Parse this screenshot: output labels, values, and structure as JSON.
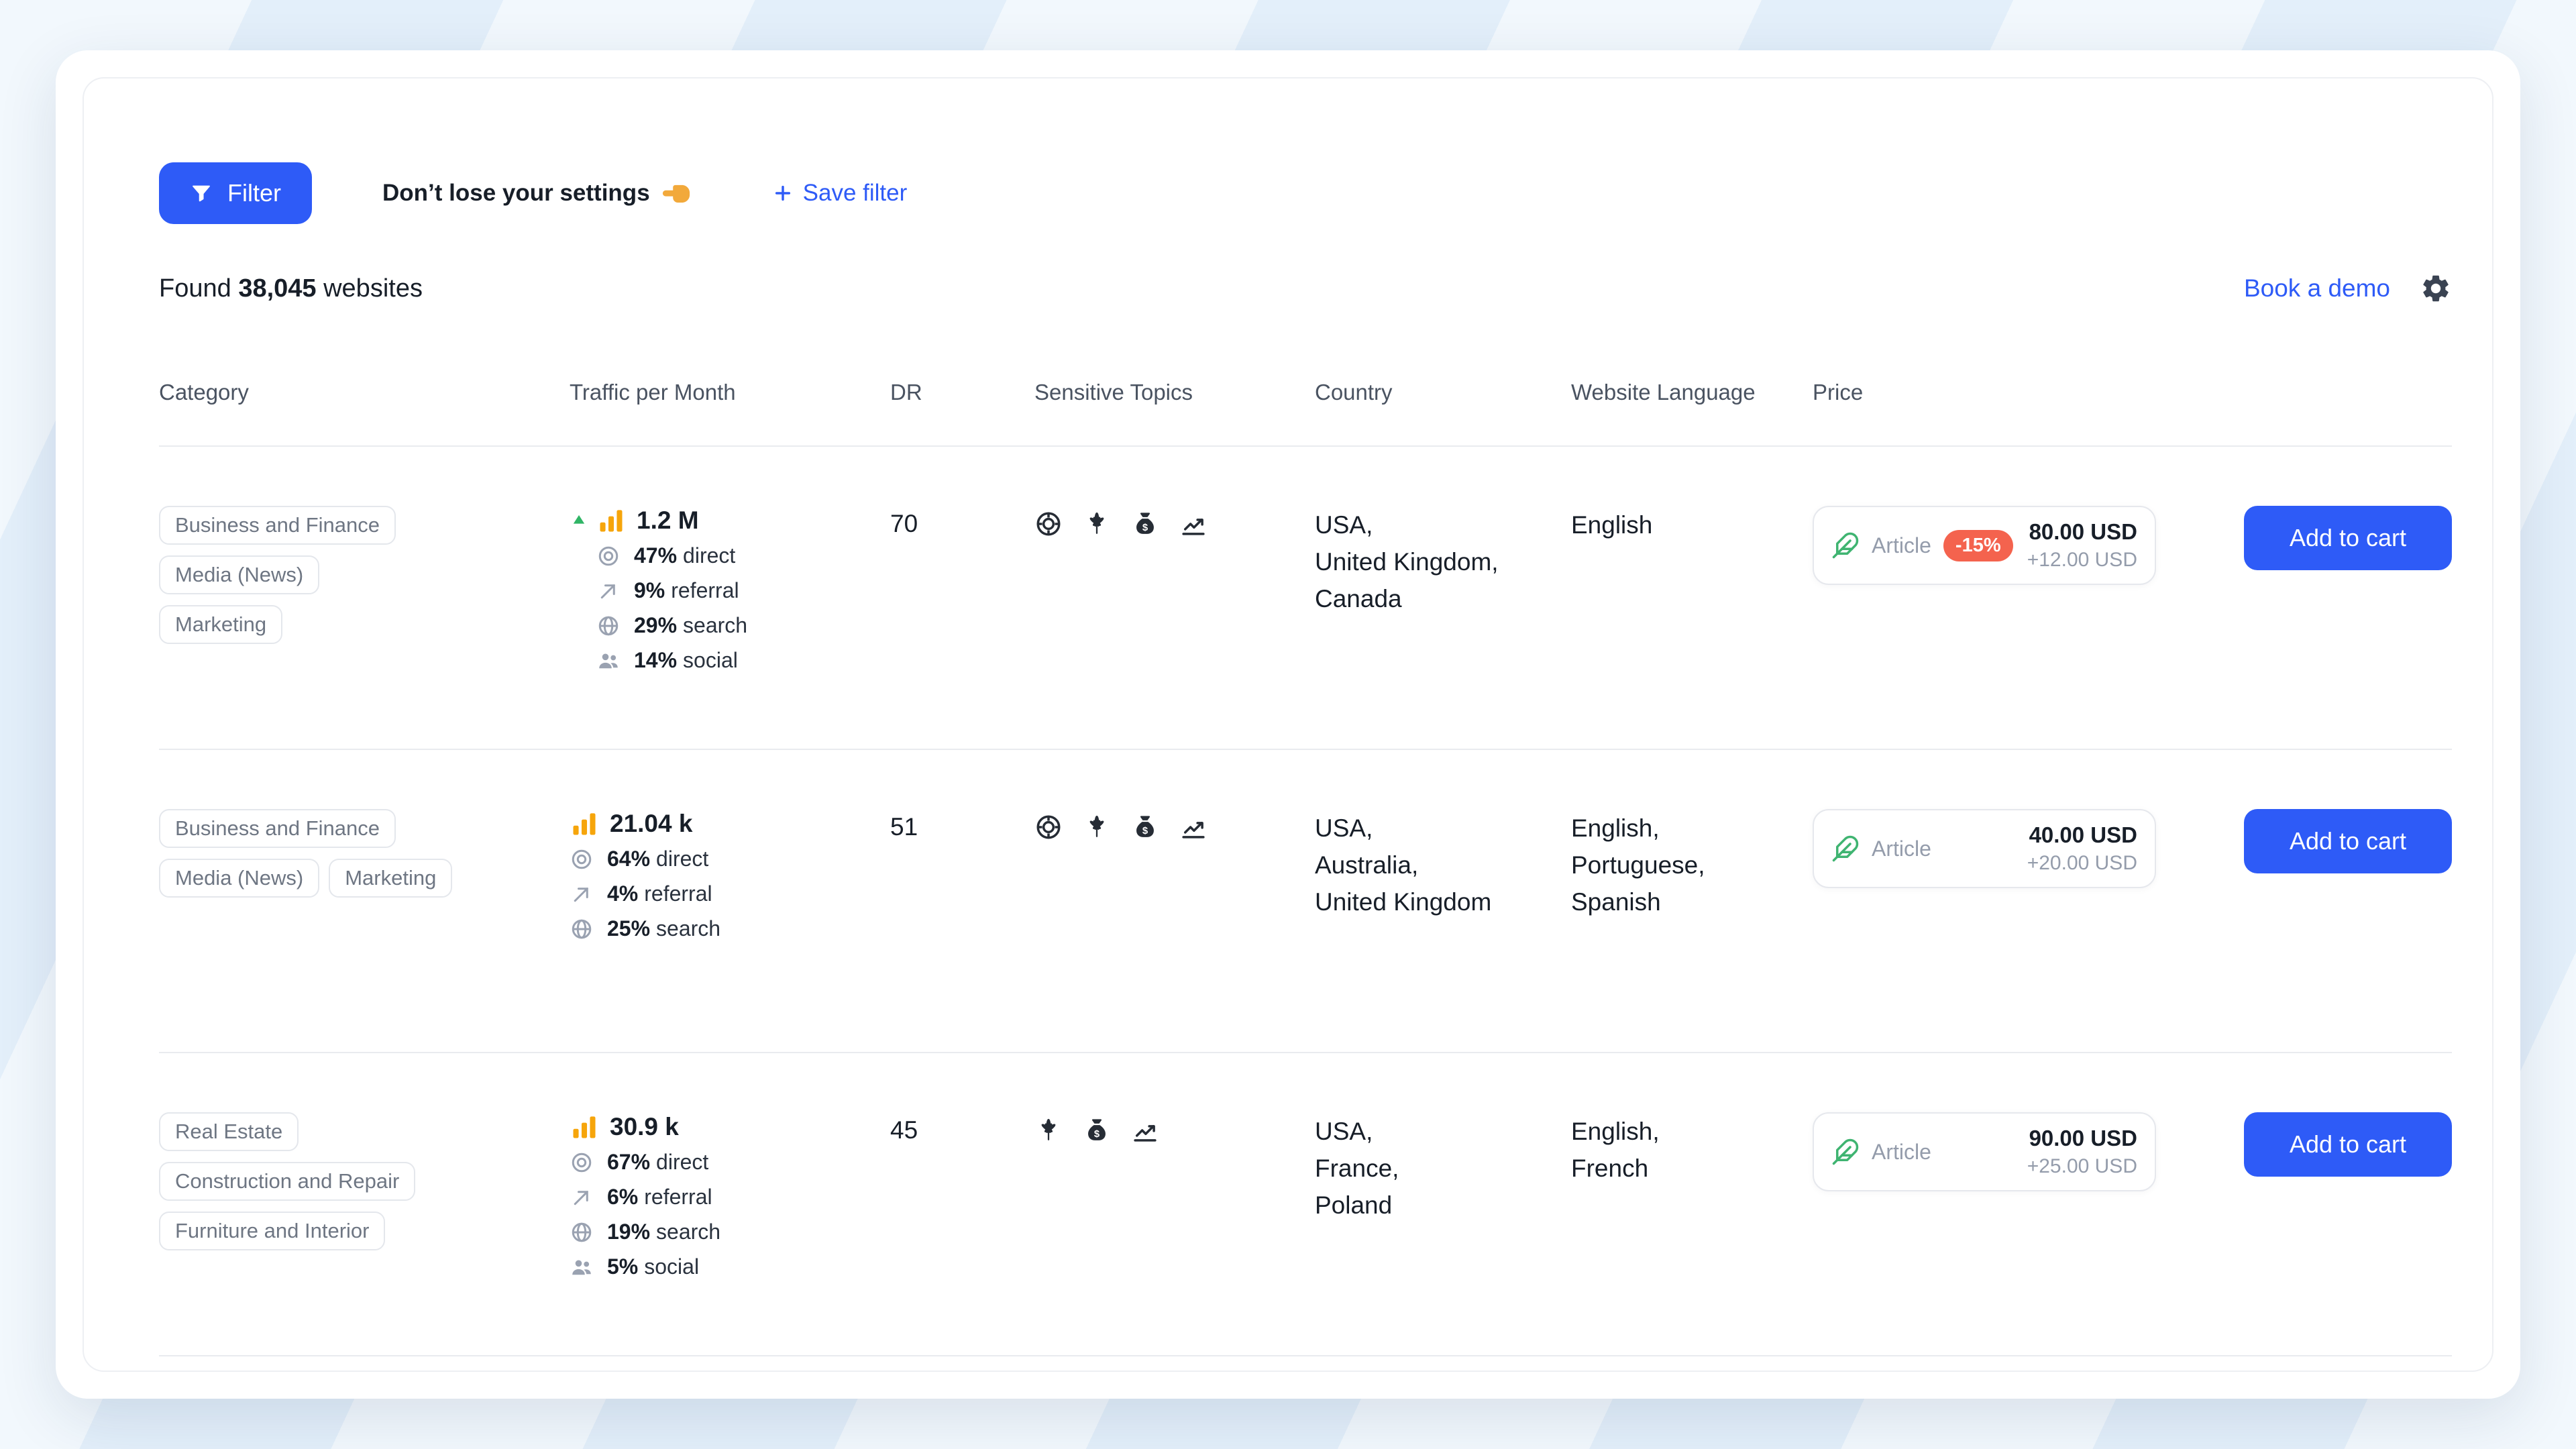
{
  "theme": {
    "accent": "#2e5bf7",
    "badge": "#f4634e",
    "bars_orange": "#f6a50b",
    "trend_green": "#30b566",
    "feather_green": "#3fb471",
    "background": "#e3effa"
  },
  "toolbar": {
    "filter_label": "Filter",
    "hint": "Don’t lose your settings",
    "save_filter_label": "Save filter"
  },
  "summary": {
    "found_prefix": "Found",
    "count": "38,045",
    "found_suffix": "websites",
    "book_demo_label": "Book a demo"
  },
  "table": {
    "headers": [
      "Category",
      "Traffic per Month",
      "DR",
      "Sensitive Topics",
      "Country",
      "Website Language",
      "Price"
    ],
    "rows": [
      {
        "categories": [
          [
            "Business and Finance"
          ],
          [
            "Media (News)"
          ],
          [
            "Marketing"
          ]
        ],
        "traffic": {
          "trend_up": true,
          "total": "1.2 M",
          "breakdown": [
            {
              "icon": "direct",
              "value": "47%",
              "label": "direct"
            },
            {
              "icon": "referral",
              "value": "9%",
              "label": "referral"
            },
            {
              "icon": "search",
              "value": "29%",
              "label": "search"
            },
            {
              "icon": "social",
              "value": "14%",
              "label": "social"
            }
          ]
        },
        "dr": "70",
        "sensitive_topics": [
          "casino-chip",
          "cannabis",
          "money-bag",
          "trading"
        ],
        "countries": [
          "USA,",
          "United Kingdom,",
          "Canada"
        ],
        "languages": [
          "English"
        ],
        "price": {
          "label": "Article",
          "discount": "-15%",
          "amount": "80.00 USD",
          "extra": "+12.00 USD"
        },
        "cart_label": "Add to cart"
      },
      {
        "categories": [
          [
            "Business and Finance"
          ],
          [
            "Media (News)",
            "Marketing"
          ]
        ],
        "traffic": {
          "trend_up": false,
          "total": "21.04 k",
          "breakdown": [
            {
              "icon": "direct",
              "value": "64%",
              "label": "direct"
            },
            {
              "icon": "referral",
              "value": "4%",
              "label": "referral"
            },
            {
              "icon": "search",
              "value": "25%",
              "label": "search"
            }
          ]
        },
        "dr": "51",
        "sensitive_topics": [
          "casino-chip",
          "cannabis",
          "money-bag",
          "trading"
        ],
        "countries": [
          "USA,",
          "Australia,",
          "United Kingdom"
        ],
        "languages": [
          "English,",
          "Portuguese,",
          "Spanish"
        ],
        "price": {
          "label": "Article",
          "discount": null,
          "amount": "40.00 USD",
          "extra": "+20.00 USD"
        },
        "cart_label": "Add to cart"
      },
      {
        "categories": [
          [
            "Real Estate"
          ],
          [
            "Construction and Repair"
          ],
          [
            "Furniture and Interior"
          ]
        ],
        "traffic": {
          "trend_up": false,
          "total": "30.9 k",
          "breakdown": [
            {
              "icon": "direct",
              "value": "67%",
              "label": "direct"
            },
            {
              "icon": "referral",
              "value": "6%",
              "label": "referral"
            },
            {
              "icon": "search",
              "value": "19%",
              "label": "search"
            },
            {
              "icon": "social",
              "value": "5%",
              "label": "social"
            }
          ]
        },
        "dr": "45",
        "sensitive_topics": [
          "cannabis",
          "money-bag",
          "trading"
        ],
        "countries": [
          "USA,",
          "France,",
          "Poland"
        ],
        "languages": [
          "English,",
          "French"
        ],
        "price": {
          "label": "Article",
          "discount": null,
          "amount": "90.00 USD",
          "extra": "+25.00 USD"
        },
        "cart_label": "Add to cart"
      }
    ]
  }
}
